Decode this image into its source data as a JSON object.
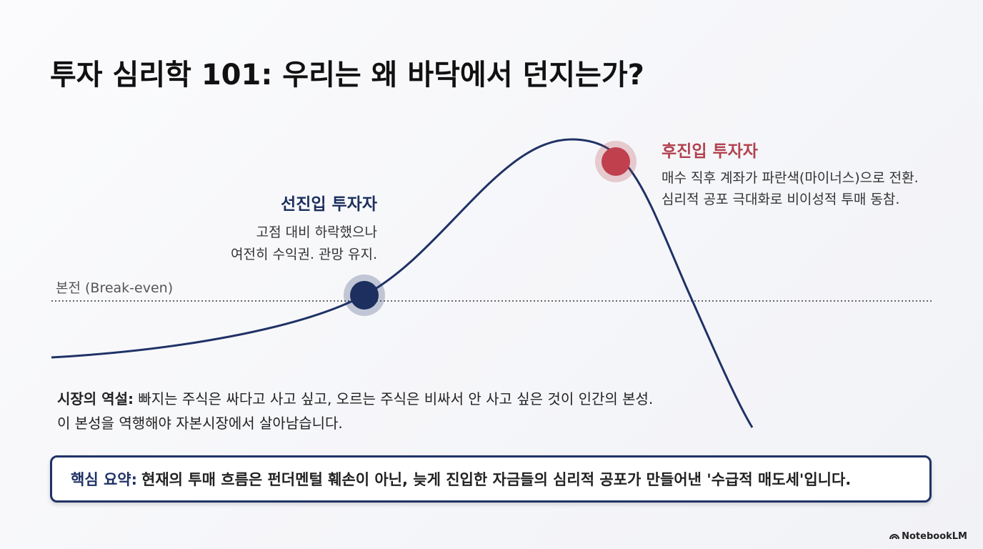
{
  "title": "투자 심리학 101: 우리는 왜 바닥에서 던지는가?",
  "breakeven_label": "본전 (Break-even)",
  "early_investor": {
    "title": "선진입 투자자",
    "lines": [
      "고점 대비 하락했으나",
      "여전히 수익권. 관망 유지."
    ]
  },
  "late_investor": {
    "title": "후진입 투자자",
    "lines": [
      "매수 직후 계좌가 파란색(마이너스)으로 전환.",
      "심리적 공포 극대화로 비이성적 투매 동참."
    ]
  },
  "paradox": {
    "label": "시장의 역설:",
    "lines": [
      "빠지는 주식은 싸다고 사고 싶고, 오르는 주식은 비싸서 안 사고 싶은 것이 인간의 본성.",
      "이 본성을 역행해야 자본시장에서 살아남습니다."
    ]
  },
  "summary": {
    "label": "핵심 요약:",
    "text": "현재의 투매 흐름은 펀더멘털 훼손이 아닌, 늦게 진입한 자금들의 심리적 공포가 만들어낸 '수급적 매도세'입니다."
  },
  "brand": "NotebookLM"
}
